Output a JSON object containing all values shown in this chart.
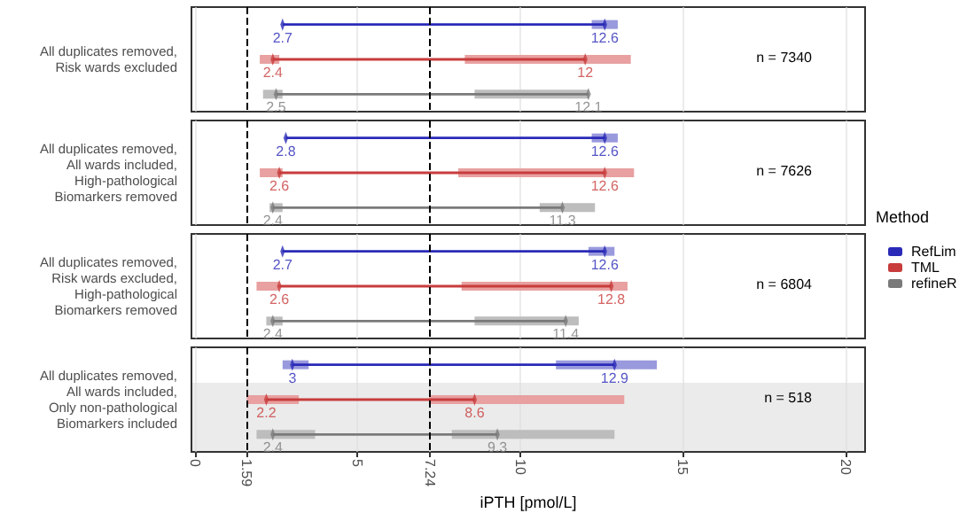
{
  "chart_data": {
    "type": "bar",
    "orientation": "horizontal",
    "xlabel": "iPTH [pmol/L]",
    "legend_title": "Method",
    "legend": "right",
    "grid": "x",
    "marker": "diamond",
    "categories": [
      null,
      "All duplicates removed,\nRisk wards excluded",
      null,
      null,
      "All duplicates removed,\nAll wards included,\nHigh-pathological\nBiomarkers removed",
      null,
      null,
      "All duplicates removed,\nRisk wards excluded,\nHigh-pathological\nBiomarkers removed",
      null,
      null,
      "All duplicates removed,\nAll wards included,\nOnly non-pathological\nBiomarkers included",
      null
    ],
    "xlim": [
      -0.1,
      20.6
    ],
    "xticks": [
      0,
      5,
      10,
      15,
      20
    ],
    "ref_lines": [
      {
        "axis": "x",
        "value": 1.59,
        "label": "1.59",
        "color": "#000000",
        "line_style": "dashed"
      },
      {
        "axis": "x",
        "value": 7.24,
        "label": "7.24",
        "color": "#000000",
        "line_style": "dashed"
      }
    ],
    "annotations": [
      "n = 7340",
      "n = 7626",
      "n = 6804",
      "n = 518"
    ],
    "series": [
      {
        "base": [
          null,
          2.0,
          2.1,
          null,
          2.0,
          2.3,
          null,
          1.9,
          2.2,
          2.7,
          1.6,
          1.9
        ],
        "values": [
          null,
          0.6,
          0.6,
          null,
          0.7,
          0.4,
          null,
          0.7,
          0.5,
          0.8,
          1.6,
          1.8
        ],
        "colors": [
          null,
          "#e8a0a0",
          "#bdbdbd",
          null,
          "#e8a0a0",
          "#bdbdbd",
          null,
          "#e8a0a0",
          "#bdbdbd",
          "#9999dd",
          "#e8a0a0",
          "#bdbdbd"
        ]
      },
      {
        "base": [
          12.2,
          8.3,
          8.6,
          12.2,
          8.1,
          10.6,
          12.1,
          8.2,
          8.6,
          11.1,
          7.2,
          7.9
        ],
        "values": [
          0.8,
          5.1,
          3.5,
          0.8,
          5.4,
          1.7,
          0.8,
          5.1,
          3.2,
          3.1,
          6.0,
          5.0
        ],
        "colors": [
          "#9999dd",
          "#e8a0a0",
          "#bdbdbd",
          "#9999dd",
          "#e8a0a0",
          "#bdbdbd",
          "#9999dd",
          "#e8a0a0",
          "#bdbdbd",
          "#9999dd",
          "#e8a0a0",
          "#bdbdbd"
        ]
      },
      {
        "name": "RefLim",
        "color": "#2a2ab8",
        "base": [
          2.7,
          null,
          null,
          2.8,
          null,
          null,
          2.7,
          null,
          null,
          3,
          null,
          null
        ],
        "values": [
          9.9,
          null,
          null,
          9.8,
          null,
          null,
          9.9,
          null,
          null,
          9.9,
          null,
          null
        ]
      },
      {
        "name": "TML",
        "color": "#c83c3c",
        "base": [
          null,
          2.4,
          null,
          null,
          2.6,
          null,
          null,
          2.6,
          null,
          null,
          2.2,
          null
        ],
        "values": [
          null,
          9.6,
          null,
          null,
          10,
          null,
          null,
          10.2,
          null,
          null,
          6.4,
          null
        ]
      },
      {
        "name": "refineR",
        "color": "#7a7a7a",
        "base": [
          null,
          null,
          2.5,
          null,
          null,
          2.4,
          null,
          null,
          2.4,
          null,
          null,
          2.4
        ],
        "values": [
          null,
          null,
          9.6,
          null,
          null,
          8.9,
          null,
          null,
          9,
          null,
          null,
          6.9
        ]
      },
      {
        "type": "scatter",
        "data_labels": true,
        "values": [
          2.7,
          2.4,
          2.5,
          2.8,
          2.6,
          2.4,
          2.7,
          2.6,
          2.4,
          3,
          2.2,
          2.4
        ],
        "colors": [
          "#2a2ab8",
          "#c83c3c",
          "#7a7a7a",
          "#2a2ab8",
          "#c83c3c",
          "#7a7a7a",
          "#2a2ab8",
          "#c83c3c",
          "#7a7a7a",
          "#2a2ab8",
          "#c83c3c",
          "#7a7a7a"
        ]
      },
      {
        "type": "scatter",
        "data_labels": true,
        "values": [
          12.6,
          12,
          12.1,
          12.6,
          12.6,
          11.3,
          12.6,
          12.8,
          11.4,
          12.9,
          8.6,
          9.3
        ],
        "colors": [
          "#2a2ab8",
          "#c83c3c",
          "#7a7a7a",
          "#2a2ab8",
          "#c83c3c",
          "#7a7a7a",
          "#2a2ab8",
          "#c83c3c",
          "#7a7a7a",
          "#2a2ab8",
          "#c83c3c",
          "#7a7a7a"
        ]
      }
    ]
  }
}
